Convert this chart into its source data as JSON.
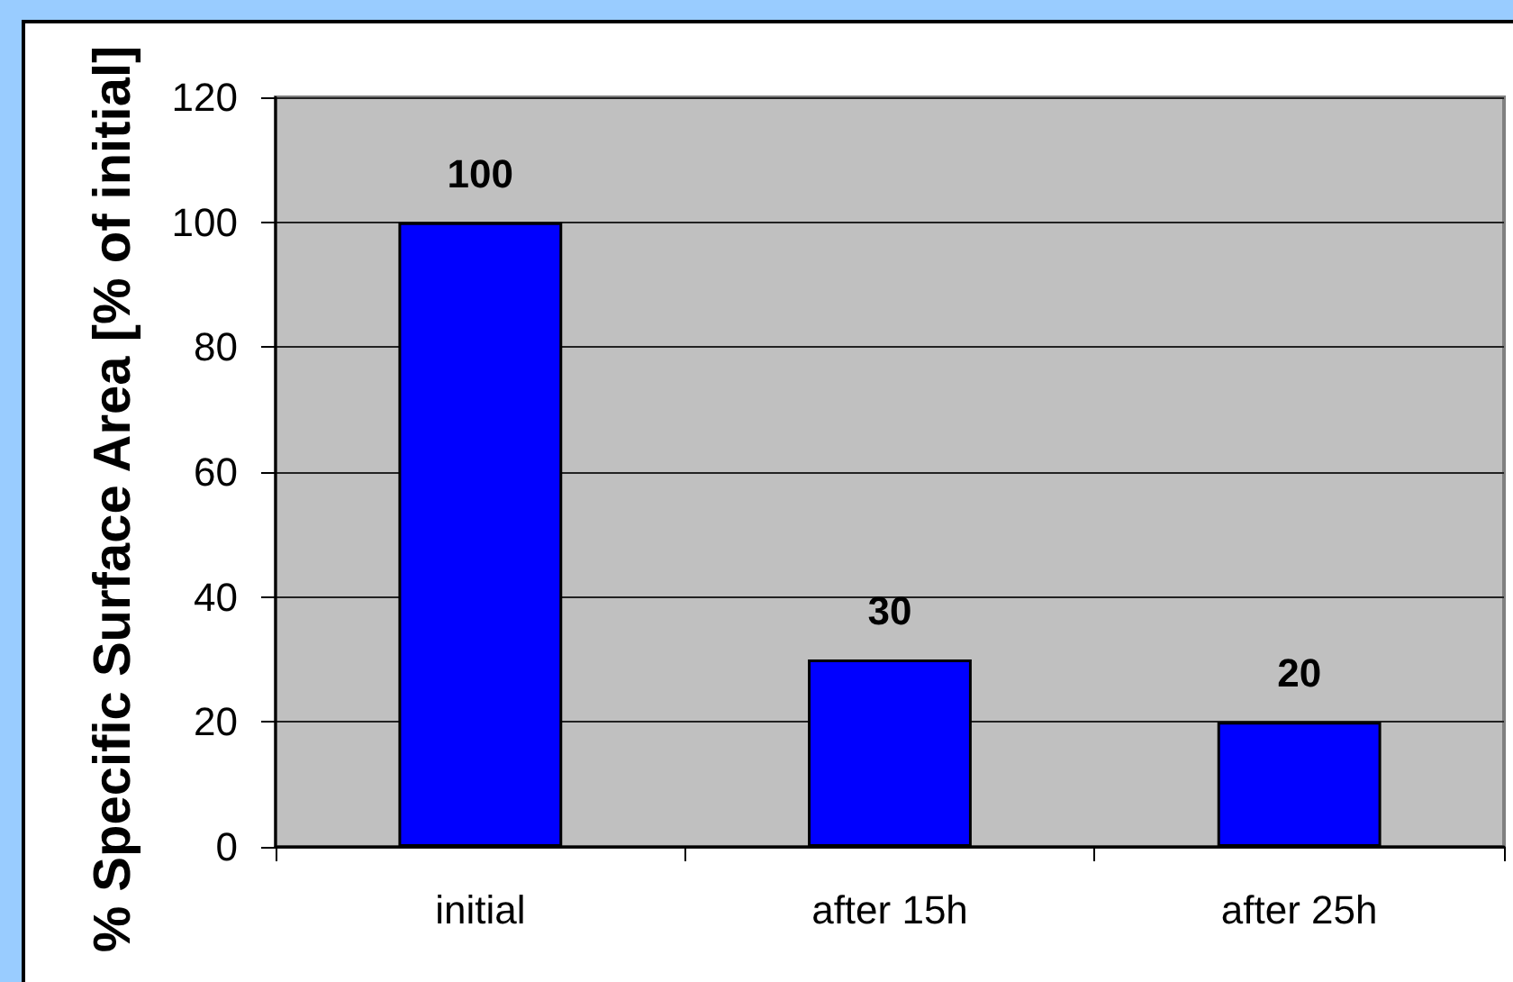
{
  "chart_data": {
    "type": "bar",
    "categories": [
      "initial",
      "after 15h",
      "after 25h"
    ],
    "values": [
      100,
      30,
      20
    ],
    "color": "#0000ff",
    "ylabel": "% Specific Surface Area [% of initial]",
    "ylim": [
      0,
      120
    ],
    "yticks": [
      0,
      20,
      40,
      60,
      80,
      100,
      120
    ],
    "grid": "y",
    "data_labels": true
  }
}
